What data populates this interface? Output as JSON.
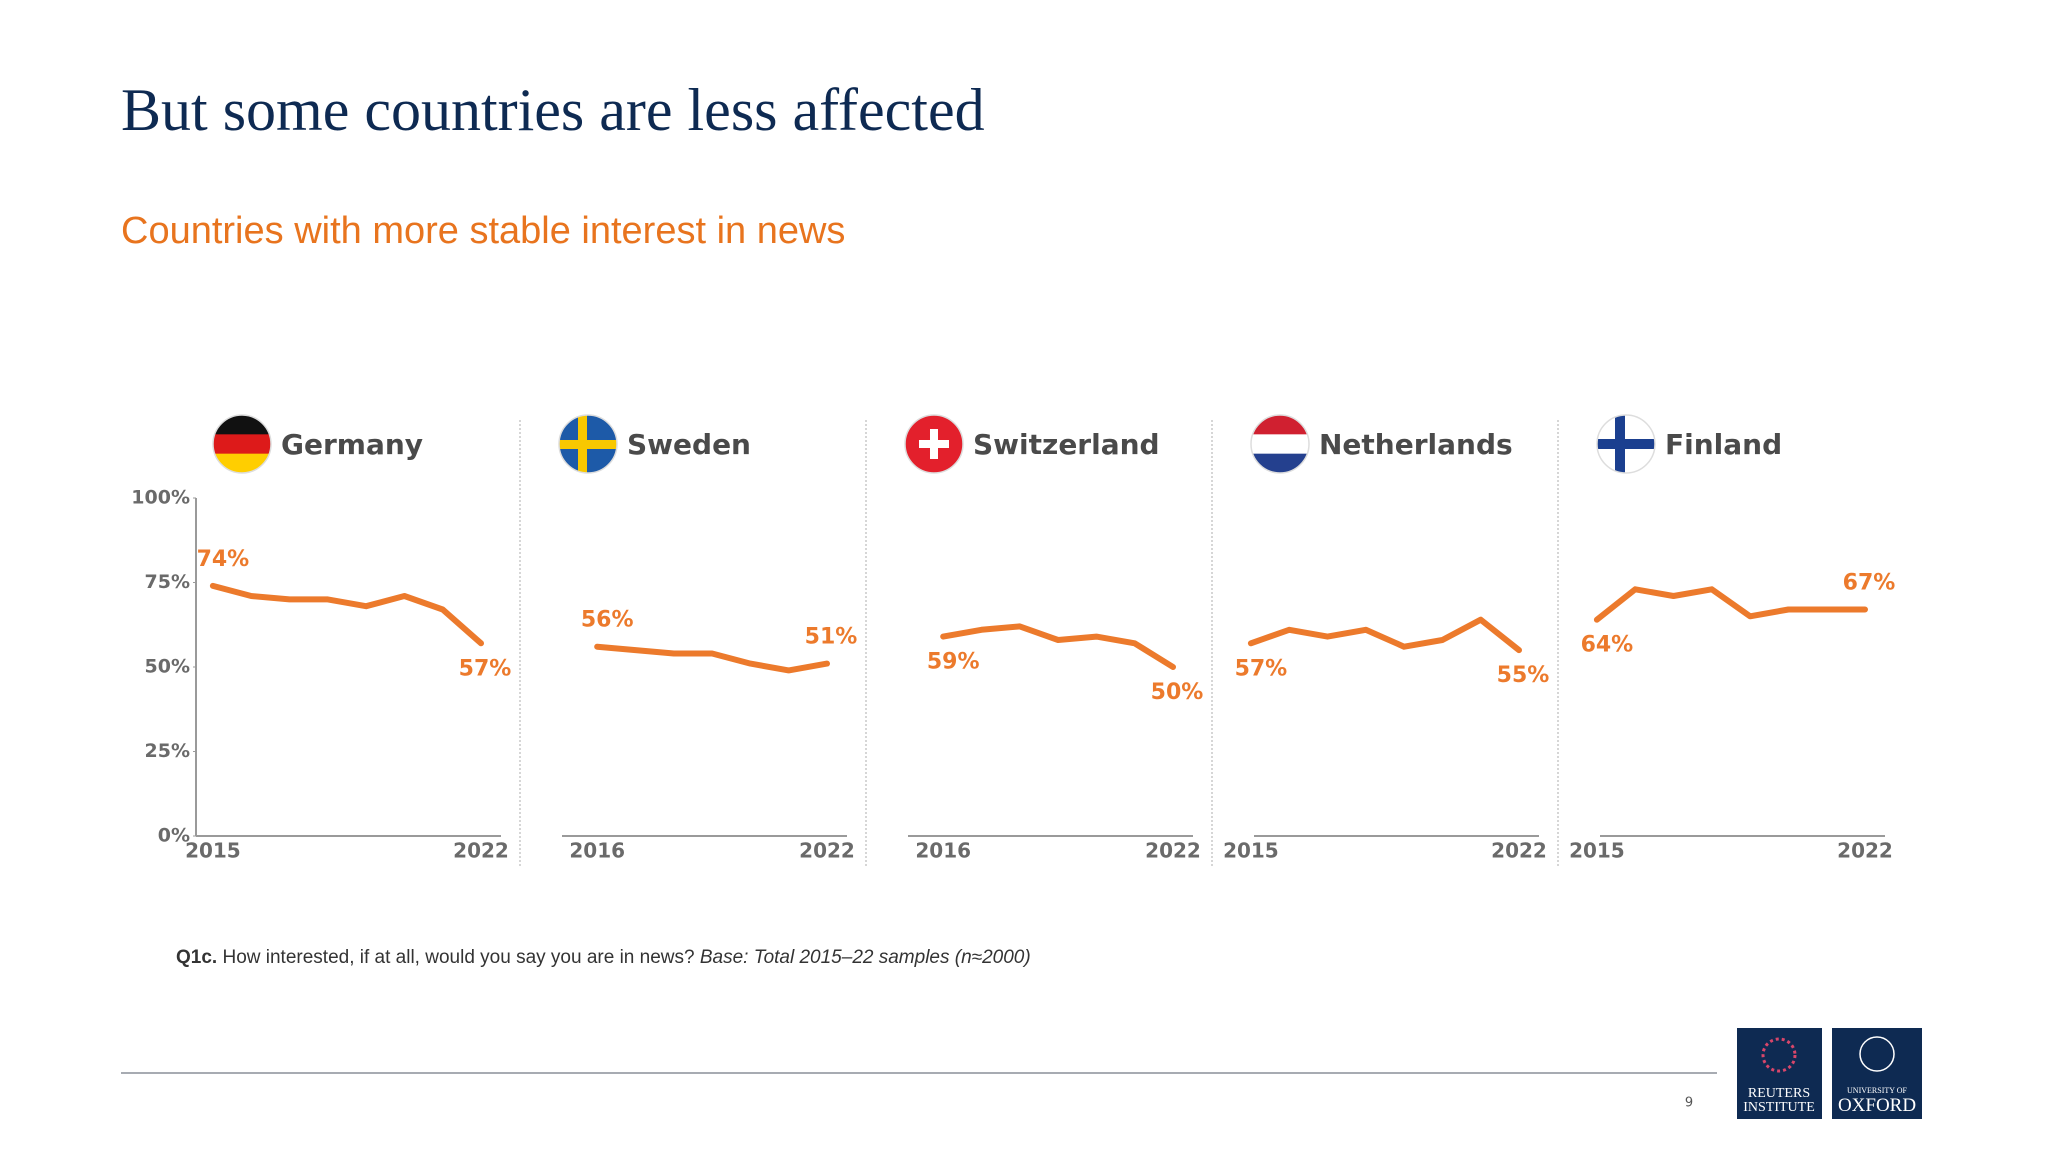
{
  "title": "But some countries are less affected",
  "subtitle": "Countries with more stable interest in news",
  "chart_data": [
    {
      "type": "line",
      "title": "Germany",
      "x": [
        2015,
        2016,
        2017,
        2018,
        2019,
        2020,
        2021,
        2022
      ],
      "xlim": [
        2015,
        2022
      ],
      "xticks": [
        2015,
        2022
      ],
      "series": [
        {
          "color": "#ec7a2c",
          "values": [
            74,
            71,
            70,
            70,
            68,
            71,
            67,
            57
          ],
          "value_labels": [
            "74%",
            null,
            null,
            null,
            null,
            null,
            null,
            "57%"
          ]
        }
      ],
      "ylim": [
        0,
        100
      ],
      "yticks": [
        {
          "value": 0,
          "label": "0%"
        },
        {
          "value": 25,
          "label": "25%"
        },
        {
          "value": 50,
          "label": "50%"
        },
        {
          "value": 75,
          "label": "75%"
        },
        {
          "value": 100,
          "label": "100%"
        }
      ]
    },
    {
      "type": "line",
      "title": "Sweden",
      "x": [
        2016,
        2017,
        2018,
        2019,
        2020,
        2021,
        2022
      ],
      "xlim": [
        2016,
        2022
      ],
      "xticks": [
        2016,
        2022
      ],
      "series": [
        {
          "color": "#ec7a2c",
          "values": [
            56,
            55,
            54,
            54,
            51,
            49,
            51
          ],
          "value_labels": [
            "56%",
            null,
            null,
            null,
            null,
            null,
            "51%"
          ]
        }
      ],
      "ylim": [
        0,
        100
      ]
    },
    {
      "type": "line",
      "title": "Switzerland",
      "x": [
        2016,
        2017,
        2018,
        2019,
        2020,
        2021,
        2022
      ],
      "xlim": [
        2016,
        2022
      ],
      "xticks": [
        2016,
        2022
      ],
      "series": [
        {
          "color": "#ec7a2c",
          "values": [
            59,
            61,
            62,
            58,
            59,
            57,
            50
          ],
          "value_labels": [
            "59%",
            null,
            null,
            null,
            null,
            null,
            "50%"
          ]
        }
      ],
      "ylim": [
        0,
        100
      ]
    },
    {
      "type": "line",
      "title": "Netherlands",
      "x": [
        2015,
        2016,
        2017,
        2018,
        2019,
        2020,
        2021,
        2022
      ],
      "xlim": [
        2015,
        2022
      ],
      "xticks": [
        2015,
        2022
      ],
      "series": [
        {
          "color": "#ec7a2c",
          "values": [
            57,
            61,
            59,
            61,
            56,
            58,
            64,
            55
          ],
          "value_labels": [
            "57%",
            null,
            null,
            null,
            null,
            null,
            null,
            "55%"
          ]
        }
      ],
      "ylim": [
        0,
        100
      ]
    },
    {
      "type": "line",
      "title": "Finland",
      "x": [
        2015,
        2016,
        2017,
        2018,
        2019,
        2020,
        2021,
        2022
      ],
      "xlim": [
        2015,
        2022
      ],
      "xticks": [
        2015,
        2022
      ],
      "series": [
        {
          "color": "#ec7a2c",
          "values": [
            64,
            73,
            71,
            73,
            65,
            67,
            67,
            67
          ],
          "value_labels": [
            "64%",
            null,
            null,
            null,
            null,
            null,
            null,
            "67%"
          ]
        }
      ],
      "ylim": [
        0,
        100
      ]
    }
  ],
  "footnote": {
    "code": "Q1c.",
    "question": "How interested, if at all, would you say you are in news?",
    "base": "Base: Total 2015–22 samples (n≈2000)"
  },
  "page_number": "9",
  "logos": {
    "reuters": [
      "REUTERS",
      "INSTITUTE"
    ],
    "oxford": [
      "UNIVERSITY OF",
      "OXFORD"
    ]
  }
}
